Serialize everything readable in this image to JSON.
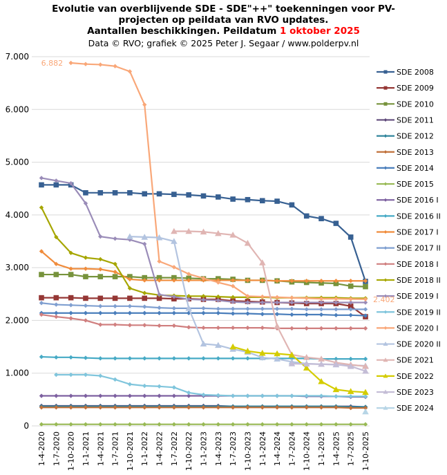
{
  "title": {
    "line1": "Evolutie van overblijvende SDE - SDE\"++\"  toekenningen  voor PV-",
    "line2": "projecten op peildata van RVO updates.",
    "line3_prefix": "Aantallen  beschikkingen.  Peildatum ",
    "line3_date": "1 oktober 2025",
    "credit": "Data © RVO;  grafiek © 2025 Peter J. Segaar / www.polderpv.nl",
    "date_color": "#ff0000"
  },
  "chart_data": {
    "type": "line",
    "title": "Evolutie van overblijvende SDE - SDE\"++\" toekenningen voor PV-projecten op peildata van RVO updates. Aantallen beschikkingen. Peildatum 1 oktober 2025",
    "xlabel": "",
    "ylabel": "",
    "ylim": [
      0,
      7000
    ],
    "yticks": [
      0,
      1000,
      2000,
      3000,
      4000,
      5000,
      6000,
      7000
    ],
    "ytick_labels": [
      "0",
      "1.000",
      "2.000",
      "3.000",
      "4.000",
      "5.000",
      "6.000",
      "7.000"
    ],
    "grid": "horizontal",
    "legend": "right",
    "x": [
      "1-4-2020",
      "1-7-2020",
      "1-10-2020",
      "1-1-2021",
      "1-4-2021",
      "1-7-2021",
      "1-10-2021",
      "1-1-2022",
      "1-4-2022",
      "1-7-2022",
      "1-10-2022",
      "1-1-2023",
      "1-4-2023",
      "1-7-2023",
      "1-10-2023",
      "1-1-2024",
      "1-4-2024",
      "1-7-2024",
      "1-10-2024",
      "1-1-2025",
      "1-4-2025",
      "1-7-2025",
      "1-10-2025"
    ],
    "annotations": [
      {
        "text": "6.882",
        "series": "SDE 2020 I",
        "x": "1-10-2020",
        "y": 6882
      },
      {
        "text": "2.402",
        "series": "SDE 2020 I",
        "x": "1-10-2025",
        "y": 2402
      }
    ],
    "series": [
      {
        "name": "SDE 2008",
        "color": "#376092",
        "marker": "square",
        "values": [
          4570,
          4570,
          4570,
          4420,
          4420,
          4420,
          4420,
          4400,
          4400,
          4390,
          4380,
          4360,
          4340,
          4300,
          4290,
          4270,
          4260,
          4190,
          3980,
          3930,
          3840,
          3580,
          2740
        ]
      },
      {
        "name": "SDE 2009",
        "color": "#953735",
        "marker": "square",
        "values": [
          2430,
          2430,
          2430,
          2420,
          2420,
          2420,
          2420,
          2420,
          2420,
          2410,
          2410,
          2400,
          2400,
          2370,
          2360,
          2350,
          2340,
          2330,
          2320,
          2320,
          2320,
          2270,
          2070
        ]
      },
      {
        "name": "SDE 2010",
        "color": "#77933c",
        "marker": "square",
        "values": [
          2870,
          2870,
          2870,
          2830,
          2830,
          2830,
          2830,
          2810,
          2810,
          2810,
          2800,
          2790,
          2790,
          2780,
          2760,
          2760,
          2750,
          2730,
          2720,
          2710,
          2700,
          2650,
          2640
        ]
      },
      {
        "name": "SDE 2011",
        "color": "#604a7b",
        "marker": "diamond",
        "values": [
          380,
          380,
          380,
          380,
          380,
          380,
          380,
          380,
          380,
          380,
          380,
          380,
          380,
          370,
          370,
          370,
          370,
          370,
          370,
          370,
          370,
          370,
          360
        ]
      },
      {
        "name": "SDE 2012",
        "color": "#31859c",
        "marker": "diamond",
        "values": [
          370,
          370,
          370,
          370,
          370,
          370,
          370,
          370,
          370,
          370,
          370,
          370,
          370,
          370,
          370,
          370,
          370,
          370,
          370,
          370,
          370,
          360,
          360
        ]
      },
      {
        "name": "SDE 2013",
        "color": "#c0703a",
        "marker": "diamond",
        "values": [
          350,
          350,
          350,
          350,
          350,
          350,
          350,
          350,
          350,
          350,
          350,
          350,
          350,
          350,
          350,
          350,
          350,
          350,
          350,
          350,
          350,
          340,
          340
        ]
      },
      {
        "name": "SDE 2014",
        "color": "#4a7ebb",
        "marker": "diamond",
        "values": [
          2140,
          2140,
          2140,
          2140,
          2140,
          2140,
          2140,
          2140,
          2140,
          2140,
          2140,
          2140,
          2140,
          2130,
          2130,
          2120,
          2120,
          2110,
          2110,
          2110,
          2100,
          2100,
          2090
        ]
      },
      {
        "name": "SDE 2015",
        "color": "#98b954",
        "marker": "diamond",
        "values": [
          30,
          30,
          30,
          30,
          30,
          30,
          30,
          30,
          30,
          30,
          30,
          30,
          30,
          30,
          30,
          30,
          30,
          30,
          30,
          30,
          30,
          30,
          30
        ]
      },
      {
        "name": "SDE 2016 I",
        "color": "#7d60a0",
        "marker": "diamond",
        "values": [
          570,
          570,
          570,
          570,
          570,
          570,
          570,
          570,
          570,
          570,
          570,
          570,
          570,
          570,
          570,
          570,
          570,
          570,
          560,
          560,
          560,
          550,
          550
        ]
      },
      {
        "name": "SDE 2016 II",
        "color": "#46aac5",
        "marker": "diamond",
        "values": [
          1310,
          1300,
          1300,
          1290,
          1280,
          1280,
          1280,
          1280,
          1280,
          1280,
          1280,
          1280,
          1280,
          1280,
          1280,
          1280,
          1280,
          1280,
          1280,
          1270,
          1270,
          1270,
          1270
        ]
      },
      {
        "name": "SDE 2017 I",
        "color": "#f08c3c",
        "marker": "diamond",
        "values": [
          3310,
          3070,
          2980,
          2980,
          2970,
          2920,
          2780,
          2760,
          2760,
          2760,
          2760,
          2760,
          2760,
          2760,
          2760,
          2760,
          2750,
          2750,
          2750,
          2750,
          2750,
          2750,
          2750
        ]
      },
      {
        "name": "SDE 2017 II",
        "color": "#7f9fd0",
        "marker": "diamond",
        "values": [
          2330,
          2300,
          2290,
          2280,
          2270,
          2270,
          2270,
          2260,
          2240,
          2230,
          2230,
          2230,
          2220,
          2220,
          2220,
          2220,
          2220,
          2220,
          2210,
          2210,
          2210,
          2210,
          2210
        ]
      },
      {
        "name": "SDE 2018 I",
        "color": "#d07f7f",
        "marker": "diamond",
        "values": [
          2110,
          2070,
          2040,
          2000,
          1920,
          1920,
          1910,
          1910,
          1900,
          1900,
          1870,
          1860,
          1860,
          1860,
          1860,
          1860,
          1850,
          1850,
          1850,
          1850,
          1850,
          1850,
          1850
        ]
      },
      {
        "name": "SDE 2018 II",
        "color": "#a6a600",
        "marker": "diamond",
        "values": [
          4140,
          3580,
          3280,
          3190,
          3160,
          3070,
          2610,
          2520,
          2480,
          2470,
          2460,
          2460,
          2450,
          2440,
          2440,
          2440,
          2430,
          2430,
          2430,
          2430,
          2430,
          2420,
          2420
        ]
      },
      {
        "name": "SDE 2019 I",
        "color": "#9a8cb8",
        "marker": "diamond",
        "values": [
          4700,
          4650,
          4600,
          4220,
          3590,
          3550,
          3530,
          3450,
          2490,
          2450,
          2400,
          2390,
          2380,
          2350,
          2340,
          2340,
          2340,
          2340,
          2340,
          2340,
          2340,
          2340,
          2340
        ]
      },
      {
        "name": "SDE 2019 II",
        "color": "#7fc5dc",
        "marker": "diamond",
        "values": [
          null,
          970,
          970,
          970,
          950,
          880,
          790,
          760,
          750,
          730,
          630,
          590,
          580,
          570,
          570,
          570,
          570,
          570,
          570,
          570,
          560,
          560,
          560
        ]
      },
      {
        "name": "SDE 2020 I",
        "color": "#f9a778",
        "marker": "diamond",
        "values": [
          null,
          null,
          6882,
          6860,
          6850,
          6820,
          6720,
          6090,
          3120,
          3010,
          2880,
          2800,
          2720,
          2650,
          2460,
          2450,
          2440,
          2430,
          2420,
          2410,
          2410,
          2405,
          2402
        ]
      },
      {
        "name": "SDE 2020 II",
        "color": "#b3c4e0",
        "marker": "triangle",
        "values": [
          null,
          null,
          null,
          null,
          null,
          null,
          3590,
          3580,
          3570,
          3500,
          2230,
          1555,
          1530,
          1455,
          1400,
          1295,
          1270,
          1215,
          1180,
          1170,
          1160,
          1150,
          1140
        ]
      },
      {
        "name": "SDE 2021",
        "color": "#e0b5b3",
        "marker": "triangle",
        "values": [
          null,
          null,
          null,
          null,
          null,
          null,
          null,
          null,
          null,
          3690,
          3690,
          3680,
          3650,
          3620,
          3465,
          3095,
          1890,
          1350,
          1300,
          1270,
          1200,
          1160,
          1130
        ]
      },
      {
        "name": "SDE 2022",
        "color": "#d4cc00",
        "marker": "triangle",
        "values": [
          null,
          null,
          null,
          null,
          null,
          null,
          null,
          null,
          null,
          null,
          null,
          null,
          null,
          1500,
          1420,
          1380,
          1370,
          1345,
          1100,
          843,
          690,
          655,
          638
        ]
      },
      {
        "name": "SDE 2023",
        "color": "#c4bdd6",
        "marker": "triangle",
        "values": [
          null,
          null,
          null,
          null,
          null,
          null,
          null,
          null,
          null,
          null,
          null,
          null,
          null,
          null,
          null,
          null,
          null,
          1180,
          1175,
          1170,
          1165,
          1130,
          1040
        ]
      },
      {
        "name": "SDE 2024",
        "color": "#b7d5e6",
        "marker": "triangle",
        "values": [
          null,
          null,
          null,
          null,
          null,
          null,
          null,
          null,
          null,
          null,
          null,
          null,
          null,
          null,
          null,
          null,
          null,
          null,
          null,
          null,
          null,
          null,
          270
        ]
      }
    ]
  }
}
